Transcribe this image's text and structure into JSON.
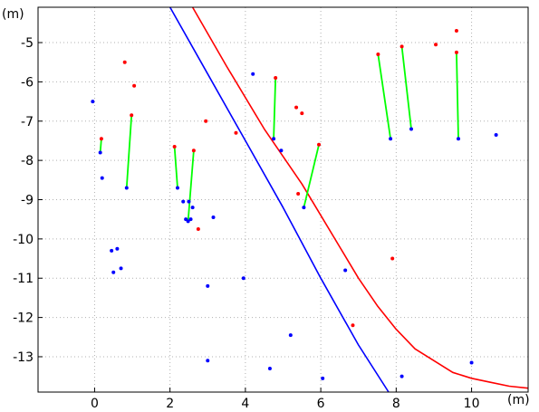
{
  "chart_data": {
    "type": "scatter",
    "title": "",
    "xlabel": "(m)",
    "ylabel": "(m)",
    "xlim": [
      -1.5,
      11.5
    ],
    "ylim": [
      -13.9,
      -4.1
    ],
    "xticks": [
      0,
      2,
      4,
      6,
      8,
      10
    ],
    "yticks": [
      -5,
      -6,
      -7,
      -8,
      -9,
      -10,
      -11,
      -12,
      -13
    ],
    "grid": true,
    "colors": {
      "blue": "#0000ff",
      "red": "#ff0000",
      "green": "#00ff00",
      "grid": "#b0b0b0"
    },
    "curves": [
      {
        "color": "blue",
        "points": [
          [
            2.0,
            -4.1
          ],
          [
            3.0,
            -5.8
          ],
          [
            4.0,
            -7.5
          ],
          [
            5.0,
            -9.2
          ],
          [
            6.0,
            -11.0
          ],
          [
            7.0,
            -12.7
          ],
          [
            7.8,
            -13.9
          ]
        ]
      },
      {
        "color": "red",
        "points": [
          [
            2.6,
            -4.1
          ],
          [
            3.5,
            -5.6
          ],
          [
            4.5,
            -7.2
          ],
          [
            5.5,
            -8.6
          ],
          [
            6.0,
            -9.4
          ],
          [
            6.5,
            -10.2
          ],
          [
            7.0,
            -11.0
          ],
          [
            7.5,
            -11.7
          ],
          [
            8.0,
            -12.3
          ],
          [
            8.5,
            -12.8
          ],
          [
            9.0,
            -13.1
          ],
          [
            9.5,
            -13.4
          ],
          [
            10.0,
            -13.55
          ],
          [
            10.5,
            -13.65
          ],
          [
            11.0,
            -13.75
          ],
          [
            11.5,
            -13.8
          ]
        ]
      }
    ],
    "segments": [
      [
        0.18,
        -7.45,
        0.15,
        -7.8
      ],
      [
        0.98,
        -6.85,
        0.85,
        -8.7
      ],
      [
        2.12,
        -7.65,
        2.2,
        -8.7
      ],
      [
        2.63,
        -7.75,
        2.48,
        -9.55
      ],
      [
        4.8,
        -5.9,
        4.75,
        -7.45
      ],
      [
        5.95,
        -7.6,
        5.55,
        -9.2
      ],
      [
        7.52,
        -5.3,
        7.85,
        -7.45
      ],
      [
        8.15,
        -5.1,
        8.4,
        -7.2
      ],
      [
        9.6,
        -5.25,
        9.65,
        -7.45
      ]
    ],
    "blue_points": [
      [
        -0.05,
        -6.5
      ],
      [
        0.2,
        -8.45
      ],
      [
        0.45,
        -10.3
      ],
      [
        0.6,
        -10.25
      ],
      [
        0.5,
        -10.85
      ],
      [
        0.7,
        -10.75
      ],
      [
        2.35,
        -9.05
      ],
      [
        2.42,
        -9.5
      ],
      [
        2.5,
        -9.05
      ],
      [
        2.55,
        -9.5
      ],
      [
        2.6,
        -9.2
      ],
      [
        3.15,
        -9.45
      ],
      [
        3.0,
        -11.2
      ],
      [
        3.0,
        -13.1
      ],
      [
        3.95,
        -11.0
      ],
      [
        4.2,
        -5.8
      ],
      [
        4.95,
        -7.75
      ],
      [
        4.65,
        -13.3
      ],
      [
        5.2,
        -12.45
      ],
      [
        6.05,
        -13.55
      ],
      [
        6.65,
        -10.8
      ],
      [
        8.15,
        -13.5
      ],
      [
        10.0,
        -13.15
      ],
      [
        10.65,
        -7.35
      ]
    ],
    "red_points": [
      [
        0.8,
        -5.5
      ],
      [
        1.05,
        -6.1
      ],
      [
        2.95,
        -7.0
      ],
      [
        2.75,
        -9.75
      ],
      [
        3.75,
        -7.3
      ],
      [
        5.35,
        -6.65
      ],
      [
        5.5,
        -6.8
      ],
      [
        5.4,
        -8.85
      ],
      [
        6.85,
        -12.2
      ],
      [
        7.9,
        -10.5
      ],
      [
        9.05,
        -5.05
      ],
      [
        9.6,
        -4.7
      ]
    ]
  }
}
